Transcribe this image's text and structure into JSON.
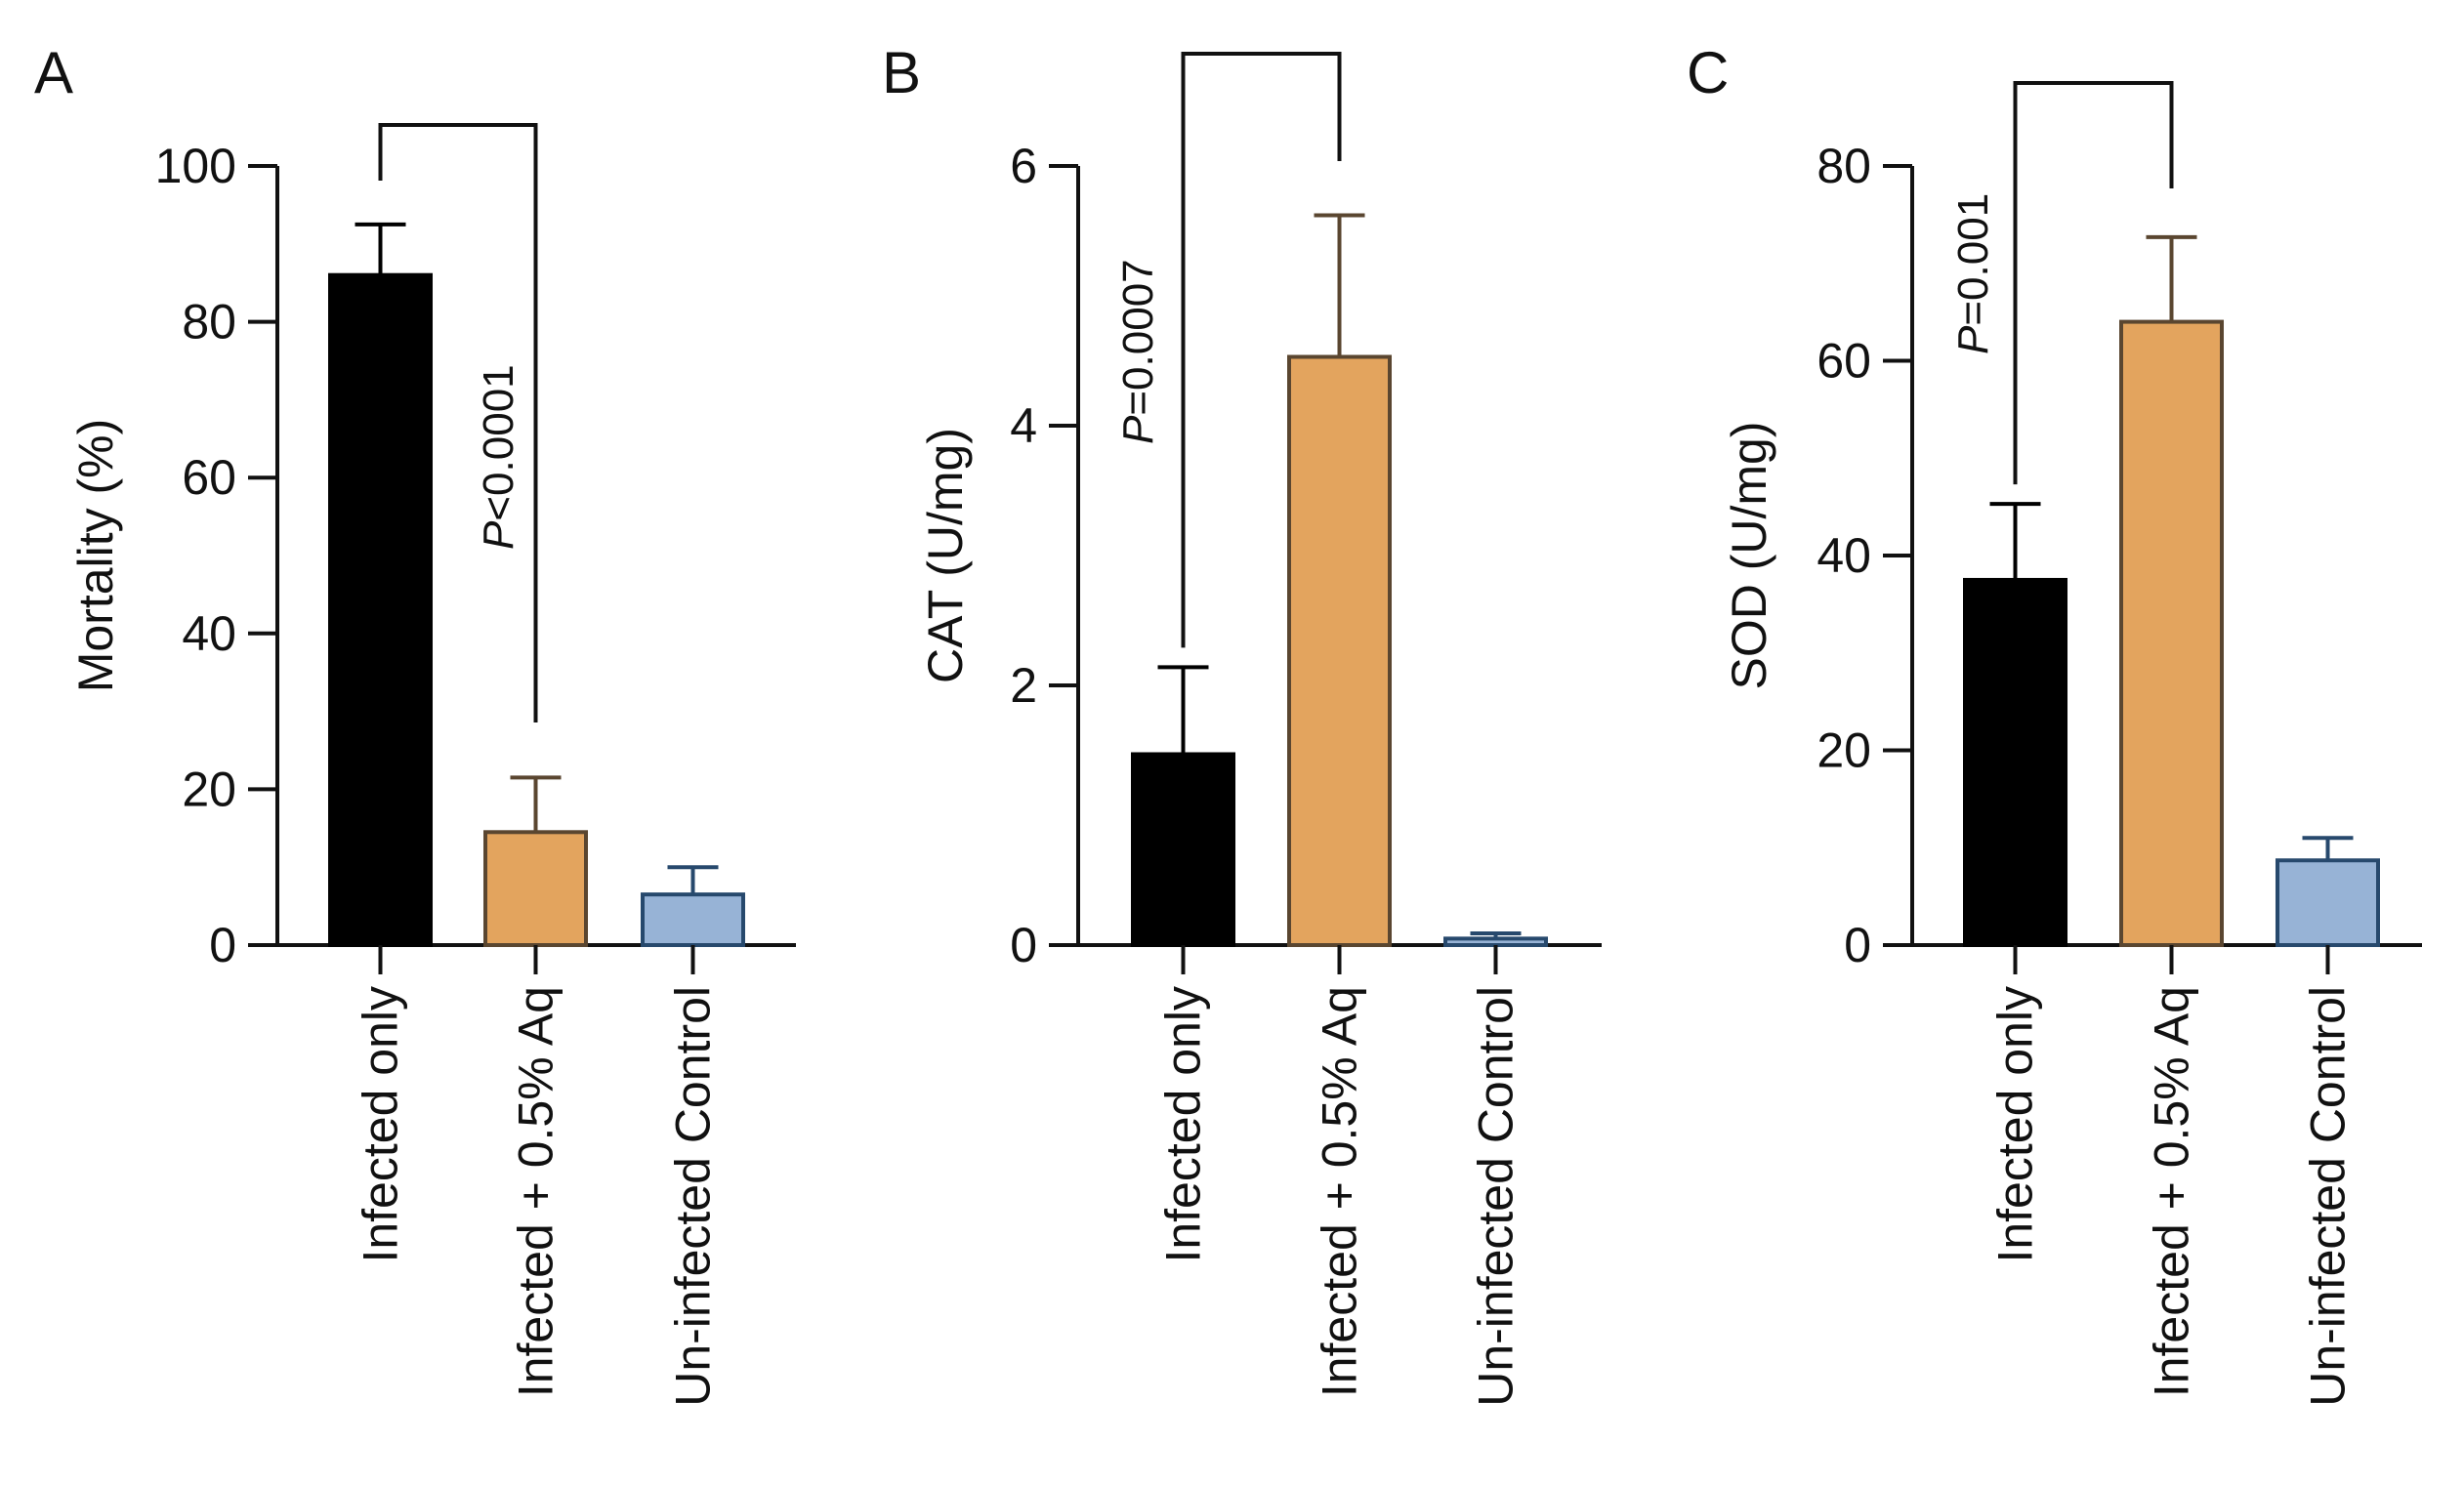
{
  "figure": {
    "colors": {
      "infected_only": "#000000",
      "infected_aq": "#e3a45e",
      "uninfected_control": "#97b3d6",
      "bar_outline_black": "#000000",
      "bar_outline_orange": "#5a4630",
      "bar_outline_blue": "#27496d"
    }
  },
  "chart_data": [
    {
      "panel": "A",
      "type": "bar",
      "categories": [
        "Infected only",
        "Infected + 0.5% Aq",
        "Un-infected Control"
      ],
      "values": [
        86,
        14.5,
        6.5
      ],
      "errors": [
        6.5,
        7,
        3.5
      ],
      "ylabel": "Mortality (%)",
      "ylim": [
        0,
        100
      ],
      "yticks": [
        0,
        20,
        40,
        60,
        80,
        100
      ],
      "significance": {
        "from": 0,
        "to": 1,
        "p_symbol": "P",
        "p_rest": "<0.0001"
      }
    },
    {
      "panel": "B",
      "type": "bar",
      "categories": [
        "Infected only",
        "Infected + 0.5% Aq",
        "Un-infected Control"
      ],
      "values": [
        1.47,
        4.53,
        0.05
      ],
      "errors": [
        0.67,
        1.09,
        0.04
      ],
      "ylabel": "CAT (U/mg)",
      "ylim": [
        0,
        6
      ],
      "yticks": [
        0,
        2,
        4,
        6
      ],
      "significance": {
        "from": 0,
        "to": 1,
        "p_symbol": "P",
        "p_rest": "=0.0007"
      }
    },
    {
      "panel": "C",
      "type": "bar",
      "categories": [
        "Infected only",
        "Infected + 0.5% Aq",
        "Un-infected Control"
      ],
      "values": [
        37.5,
        64,
        8.7
      ],
      "errors": [
        7.8,
        8.7,
        2.3
      ],
      "ylabel": "SOD (U/mg)",
      "ylim": [
        0,
        80
      ],
      "yticks": [
        0,
        20,
        40,
        60,
        80
      ],
      "significance": {
        "from": 0,
        "to": 1,
        "p_symbol": "P",
        "p_rest": "=0.001"
      }
    }
  ]
}
